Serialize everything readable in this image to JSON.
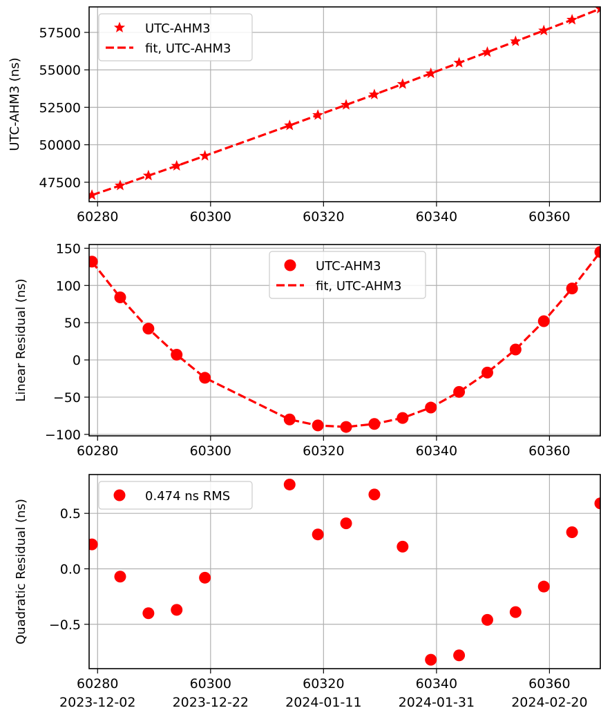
{
  "chart_data": [
    {
      "type": "line",
      "ylabel": "UTC-AHM3 (ns)",
      "xlim": [
        60278.5,
        60369
      ],
      "ylim": [
        46200,
        59200
      ],
      "xticks": [
        "60280",
        "60300",
        "60320",
        "60340",
        "60360"
      ],
      "yticks": [
        "47500",
        "50000",
        "52500",
        "55000",
        "57500"
      ],
      "grid": true,
      "legend_position": "upper-left",
      "series": [
        {
          "name": "UTC-AHM3",
          "marker": "star",
          "x": [
            60279,
            60284,
            60289,
            60294,
            60299,
            60314,
            60319,
            60324,
            60329,
            60334,
            60339,
            60344,
            60349,
            60354,
            60359,
            60364,
            60369
          ],
          "y": [
            46640,
            47280,
            47940,
            48590,
            49260,
            51290,
            51980,
            52660,
            53350,
            54050,
            54760,
            55470,
            56180,
            56900,
            57620,
            58340,
            59080
          ]
        },
        {
          "name": "fit, UTC-AHM3",
          "style": "dashed",
          "x": [
            60279,
            60284,
            60289,
            60294,
            60299,
            60314,
            60319,
            60324,
            60329,
            60334,
            60339,
            60344,
            60349,
            60354,
            60359,
            60364,
            60369
          ],
          "y": [
            46640,
            47280,
            47940,
            48590,
            49260,
            51290,
            51980,
            52660,
            53350,
            54050,
            54760,
            55470,
            56180,
            56900,
            57620,
            58340,
            59080
          ]
        }
      ]
    },
    {
      "type": "line",
      "ylabel": "Linear Residual (ns)",
      "xlim": [
        60278.5,
        60369
      ],
      "ylim": [
        -102,
        155
      ],
      "xticks": [
        "60280",
        "60300",
        "60320",
        "60340",
        "60360"
      ],
      "yticks": [
        "−100",
        "−50",
        "0",
        "50",
        "100",
        "150"
      ],
      "grid": true,
      "legend_position": "upper-center",
      "series": [
        {
          "name": "UTC-AHM3",
          "marker": "circle",
          "x": [
            60279,
            60284,
            60289,
            60294,
            60299,
            60314,
            60319,
            60324,
            60329,
            60334,
            60339,
            60344,
            60349,
            60354,
            60359,
            60364,
            60369
          ],
          "y": [
            132,
            84,
            42,
            7,
            -24,
            -80,
            -88,
            -90,
            -86,
            -78,
            -64,
            -43,
            -17,
            14,
            52,
            96,
            145
          ]
        },
        {
          "name": "fit, UTC-AHM3",
          "style": "dashed",
          "x": [
            60279,
            60284,
            60289,
            60294,
            60299,
            60314,
            60319,
            60324,
            60329,
            60334,
            60339,
            60344,
            60349,
            60354,
            60359,
            60364,
            60369
          ],
          "y": [
            132,
            84,
            42,
            7,
            -24,
            -80,
            -88,
            -90,
            -86,
            -78,
            -64,
            -43,
            -17,
            14,
            52,
            96,
            145
          ]
        }
      ]
    },
    {
      "type": "scatter",
      "ylabel": "Quadratic Residual (ns)",
      "xlim": [
        60278.5,
        60369
      ],
      "ylim": [
        -0.9,
        0.85
      ],
      "xticks": [
        "60280",
        "60300",
        "60320",
        "60340",
        "60360"
      ],
      "xticks_secondary": [
        "2023-12-02",
        "2023-12-22",
        "2024-01-11",
        "2024-01-31",
        "2024-02-20"
      ],
      "yticks": [
        "−0.5",
        "0.0",
        "0.5"
      ],
      "grid": true,
      "legend_position": "upper-left",
      "series": [
        {
          "name": "0.474 ns RMS",
          "marker": "circle",
          "x": [
            60279,
            60284,
            60289,
            60294,
            60299,
            60314,
            60319,
            60324,
            60329,
            60334,
            60339,
            60344,
            60349,
            60354,
            60359,
            60364,
            60369
          ],
          "y": [
            0.22,
            -0.07,
            -0.4,
            -0.37,
            -0.08,
            0.76,
            0.31,
            0.41,
            0.67,
            0.2,
            -0.82,
            -0.78,
            -0.46,
            -0.39,
            -0.16,
            0.33,
            0.59
          ]
        }
      ]
    }
  ],
  "colors": {
    "series": "#ff0000",
    "grid": "#b0b0b0",
    "axes": "#000000"
  }
}
